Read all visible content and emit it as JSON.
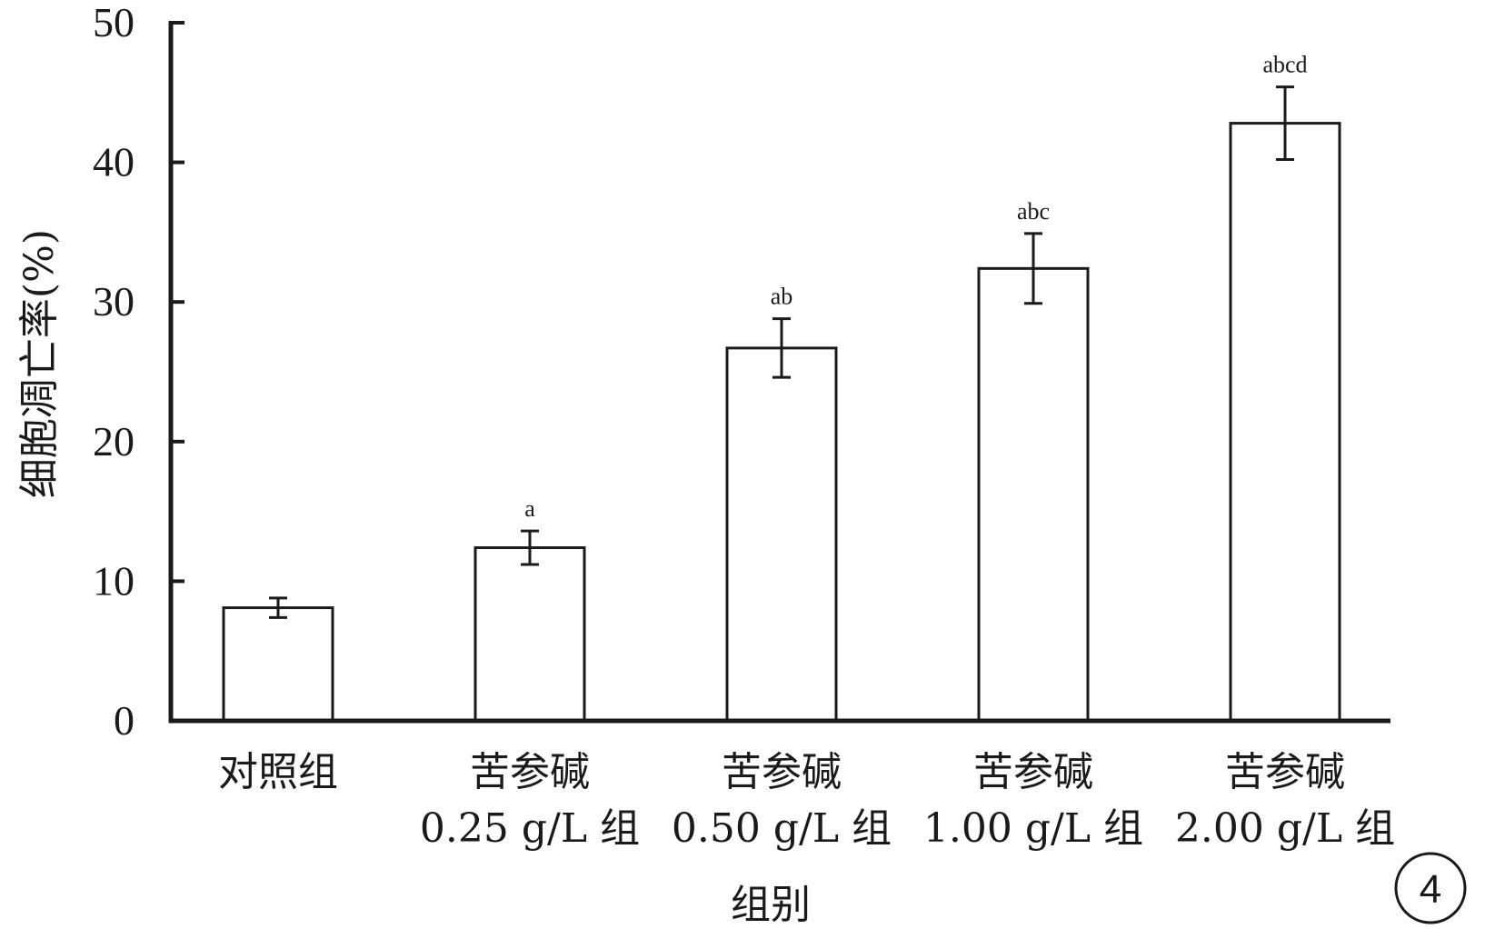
{
  "chart_data": {
    "type": "bar",
    "ylabel": "细胞凋亡率(%)",
    "xlabel": "组别",
    "ylim": [
      0,
      50
    ],
    "yticks": [
      0,
      10,
      20,
      30,
      40,
      50
    ],
    "categories": [
      [
        "对照组"
      ],
      [
        "苦参碱",
        "0.25 g/L 组"
      ],
      [
        "苦参碱",
        "0.50 g/L 组"
      ],
      [
        "苦参碱",
        "1.00 g/L 组"
      ],
      [
        "苦参碱",
        "2.00 g/L 组"
      ]
    ],
    "values": [
      8.1,
      12.4,
      26.7,
      32.4,
      42.8
    ],
    "errors": [
      0.7,
      1.2,
      2.1,
      2.5,
      2.6
    ],
    "significance": [
      "",
      "a",
      "ab",
      "abc",
      "abcd"
    ],
    "grid": false,
    "legend": "none",
    "colors": {
      "bar_fill": "#ffffff",
      "stroke": "#1a1a1a"
    }
  },
  "panel_label": "4"
}
